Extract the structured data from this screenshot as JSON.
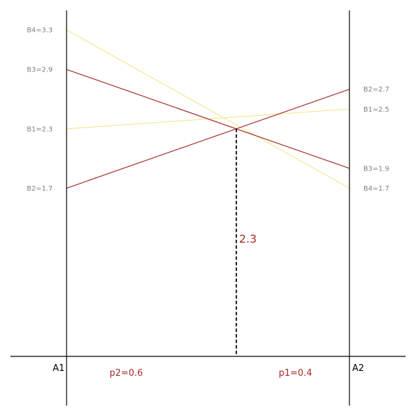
{
  "colors": {
    "highlight": "#a52a2a",
    "faded": "#f0e68c",
    "axis": "#000000",
    "tick_text": "#808080"
  },
  "chart_data": {
    "type": "line",
    "title": "",
    "grid": false,
    "ylim": [
      0,
      3.5
    ],
    "x_axes": {
      "left": "A1",
      "right": "A2"
    },
    "series": [
      {
        "label_left": "B1=2.3",
        "label_right": "B1=2.5",
        "y": [
          2.3,
          2.5
        ],
        "highlight": false
      },
      {
        "label_left": "B2=1.7",
        "label_right": "B2=2.7",
        "y": [
          1.7,
          2.7
        ],
        "highlight": true
      },
      {
        "label_left": "B3=2.9",
        "label_right": "B3=1.9",
        "y": [
          2.9,
          1.9
        ],
        "highlight": true
      },
      {
        "label_left": "B4=3.3",
        "label_right": "B4=1.7",
        "y": [
          3.3,
          1.7
        ],
        "highlight": false
      }
    ],
    "intersection": {
      "x_fraction": 0.6,
      "value": 2.3,
      "label": "2.3"
    },
    "probabilities": {
      "p2": "p2=0.6",
      "p1": "p1=0.4"
    }
  }
}
